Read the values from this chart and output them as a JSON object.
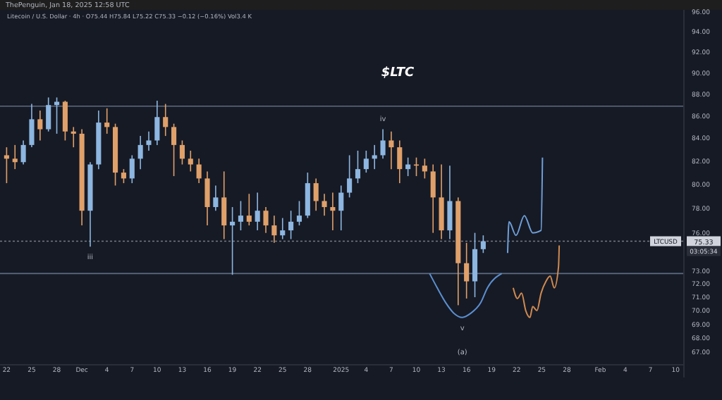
{
  "chart_data": {
    "type": "candlestick",
    "title": "$LTC",
    "subtitle": "Litecoin / U.S. Dollar · 4h · O75.44 H75.84 L75.22 C75.33 −0.12 (−0.16%) Vol3.4 K",
    "x": [
      "2024-11-22",
      "2024-11-23",
      "2024-11-24",
      "2024-11-25",
      "2024-11-26",
      "2024-11-27",
      "2024-11-28",
      "2024-11-29",
      "2024-11-30",
      "2024-12-01",
      "2024-12-02",
      "2024-12-03",
      "2024-12-04",
      "2024-12-05",
      "2024-12-06",
      "2024-12-07",
      "2024-12-08",
      "2024-12-09",
      "2024-12-10",
      "2024-12-11",
      "2024-12-12",
      "2024-12-13",
      "2024-12-14",
      "2024-12-15",
      "2024-12-16",
      "2024-12-17",
      "2024-12-18",
      "2024-12-19",
      "2024-12-20",
      "2024-12-21",
      "2024-12-22",
      "2024-12-23",
      "2024-12-24",
      "2024-12-25",
      "2024-12-26",
      "2024-12-27",
      "2024-12-28",
      "2024-12-29",
      "2024-12-30",
      "2024-12-31",
      "2025-01-01",
      "2025-01-02",
      "2025-01-03",
      "2025-01-04",
      "2025-01-05",
      "2025-01-06",
      "2025-01-07",
      "2025-01-08",
      "2025-01-09",
      "2025-01-10",
      "2025-01-11",
      "2025-01-12",
      "2025-01-13",
      "2025-01-14",
      "2025-01-15",
      "2025-01-16",
      "2025-01-17",
      "2025-01-18"
    ],
    "ohlc": [
      [
        82.5,
        83.2,
        80.1,
        82.2
      ],
      [
        82.2,
        83.4,
        81.3,
        81.9
      ],
      [
        81.9,
        83.8,
        81.7,
        83.4
      ],
      [
        83.4,
        87.1,
        83.2,
        85.7
      ],
      [
        85.7,
        86.5,
        83.8,
        84.8
      ],
      [
        84.8,
        87.7,
        84.6,
        87.0
      ],
      [
        87.0,
        87.7,
        84.4,
        87.3
      ],
      [
        87.3,
        87.4,
        83.8,
        84.6
      ],
      [
        84.6,
        85.0,
        83.2,
        84.4
      ],
      [
        84.4,
        84.8,
        76.6,
        77.8
      ],
      [
        77.8,
        81.9,
        74.9,
        81.7
      ],
      [
        81.7,
        86.5,
        81.3,
        85.4
      ],
      [
        85.4,
        86.7,
        84.4,
        85.0
      ],
      [
        85.0,
        85.3,
        79.9,
        81.0
      ],
      [
        81.0,
        81.3,
        80.1,
        80.5
      ],
      [
        80.5,
        82.5,
        80.1,
        82.2
      ],
      [
        82.2,
        84.2,
        81.3,
        83.4
      ],
      [
        83.4,
        84.6,
        82.9,
        83.8
      ],
      [
        83.8,
        87.4,
        83.4,
        85.9
      ],
      [
        85.9,
        87.1,
        84.2,
        85.0
      ],
      [
        85.0,
        85.3,
        80.7,
        83.4
      ],
      [
        83.4,
        83.8,
        81.7,
        82.2
      ],
      [
        82.2,
        82.9,
        81.1,
        81.7
      ],
      [
        81.7,
        82.2,
        80.1,
        80.5
      ],
      [
        80.5,
        81.1,
        76.6,
        78.1
      ],
      [
        78.1,
        79.9,
        77.8,
        78.9
      ],
      [
        78.9,
        81.1,
        75.5,
        76.6
      ],
      [
        76.6,
        78.1,
        72.7,
        76.9
      ],
      [
        76.9,
        78.6,
        76.2,
        77.4
      ],
      [
        77.4,
        79.2,
        76.6,
        76.9
      ],
      [
        76.9,
        79.3,
        76.2,
        77.8
      ],
      [
        77.8,
        78.1,
        76.0,
        76.6
      ],
      [
        76.6,
        77.4,
        75.2,
        75.8
      ],
      [
        75.8,
        77.2,
        75.5,
        76.2
      ],
      [
        76.2,
        77.8,
        75.5,
        76.9
      ],
      [
        76.9,
        78.6,
        76.6,
        77.4
      ],
      [
        77.4,
        81.0,
        77.2,
        80.1
      ],
      [
        80.1,
        80.5,
        77.8,
        78.6
      ],
      [
        78.6,
        79.2,
        77.4,
        78.1
      ],
      [
        78.1,
        79.3,
        76.2,
        77.8
      ],
      [
        77.8,
        79.9,
        76.2,
        79.3
      ],
      [
        79.3,
        82.5,
        78.9,
        80.5
      ],
      [
        80.5,
        82.9,
        80.1,
        81.3
      ],
      [
        81.3,
        82.9,
        81.0,
        82.2
      ],
      [
        82.2,
        83.4,
        81.3,
        82.5
      ],
      [
        82.5,
        84.8,
        82.2,
        83.8
      ],
      [
        83.8,
        84.6,
        81.3,
        83.2
      ],
      [
        83.2,
        83.8,
        80.1,
        81.3
      ],
      [
        81.3,
        82.3,
        80.7,
        81.7
      ],
      [
        81.7,
        82.3,
        80.7,
        81.6
      ],
      [
        81.6,
        82.2,
        80.5,
        81.1
      ],
      [
        81.1,
        81.7,
        76.0,
        78.9
      ],
      [
        78.9,
        81.7,
        75.5,
        76.2
      ],
      [
        76.2,
        81.6,
        75.5,
        78.6
      ],
      [
        78.6,
        78.9,
        70.4,
        73.6
      ],
      [
        73.6,
        75.2,
        70.9,
        72.2
      ],
      [
        72.2,
        76.0,
        71.0,
        74.7
      ],
      [
        74.7,
        75.8,
        74.4,
        75.33
      ]
    ],
    "colors": [
      "#e0a06a",
      "#e0a06a",
      "#8db6e0",
      "#8db6e0",
      "#e0a06a",
      "#8db6e0",
      "#8db6e0",
      "#e0a06a",
      "#e0a06a",
      "#e0a06a",
      "#8db6e0",
      "#8db6e0",
      "#e0a06a",
      "#e0a06a",
      "#e0a06a",
      "#8db6e0",
      "#8db6e0",
      "#8db6e0",
      "#8db6e0",
      "#e0a06a",
      "#e0a06a",
      "#e0a06a",
      "#e0a06a",
      "#e0a06a",
      "#e0a06a",
      "#8db6e0",
      "#e0a06a",
      "#8db6e0",
      "#8db6e0",
      "#e0a06a",
      "#8db6e0",
      "#e0a06a",
      "#e0a06a",
      "#8db6e0",
      "#8db6e0",
      "#8db6e0",
      "#8db6e0",
      "#e0a06a",
      "#e0a06a",
      "#e0a06a",
      "#8db6e0",
      "#8db6e0",
      "#8db6e0",
      "#8db6e0",
      "#8db6e0",
      "#8db6e0",
      "#e0a06a",
      "#e0a06a",
      "#8db6e0",
      "#e0a06a",
      "#e0a06a",
      "#e0a06a",
      "#e0a06a",
      "#8db6e0",
      "#e0a06a",
      "#e0a06a",
      "#8db6e0",
      "#8db6e0"
    ],
    "series": [
      {
        "type": "line",
        "color": "#6f9fd8",
        "x": [
          "2025-01-20T22:00",
          "2025-01-21T02:00",
          "2025-01-21T22:00",
          "2025-01-22T22:00",
          "2025-01-23T22:00",
          "2025-01-24T22:00",
          "2025-01-25T02:00"
        ],
        "values": [
          74.4,
          76.9,
          75.8,
          77.4,
          76.0,
          76.2,
          82.3
        ]
      },
      {
        "type": "line",
        "color": "#d08a50",
        "x": [
          "2025-01-21T14:00",
          "2025-01-22T02:00",
          "2025-01-22T14:00",
          "2025-01-23T02:00",
          "2025-01-23T14:00",
          "2025-01-23T22:00",
          "2025-01-24T10:00",
          "2025-01-24T22:00",
          "2025-01-25T12:00",
          "2025-01-26T00:00",
          "2025-01-26T12:00",
          "2025-01-27T00:00",
          "2025-01-27T02:00"
        ],
        "values": [
          71.7,
          70.9,
          71.3,
          70.0,
          69.5,
          70.3,
          70.0,
          71.3,
          72.2,
          72.6,
          71.7,
          73.3,
          75.0
        ]
      },
      {
        "type": "line",
        "color": "#5b8fd0",
        "x": [
          "2025-01-11T14:00",
          "2025-01-12T12:00",
          "2025-01-13T12:00",
          "2025-01-14T12:00",
          "2025-01-15T12:00",
          "2025-01-16T12:00",
          "2025-01-17T17:00",
          "2025-01-18T12:00",
          "2025-01-20T05:00"
        ],
        "values": [
          72.8,
          71.7,
          70.6,
          69.8,
          69.5,
          69.8,
          70.6,
          71.7,
          72.8
        ]
      }
    ],
    "xlim": [
      "2024-11-21T05:00",
      "2025-02-11T00:00"
    ],
    "xticks": [
      {
        "value": "2024-11-22",
        "label": "22"
      },
      {
        "value": "2024-11-25",
        "label": "25"
      },
      {
        "value": "2024-11-28",
        "label": "28"
      },
      {
        "value": "2024-12-01",
        "label": "Dec"
      },
      {
        "value": "2024-12-04",
        "label": "4"
      },
      {
        "value": "2024-12-07",
        "label": "7"
      },
      {
        "value": "2024-12-10",
        "label": "10"
      },
      {
        "value": "2024-12-13",
        "label": "13"
      },
      {
        "value": "2024-12-16",
        "label": "16"
      },
      {
        "value": "2024-12-19",
        "label": "19"
      },
      {
        "value": "2024-12-22",
        "label": "22"
      },
      {
        "value": "2024-12-25",
        "label": "25"
      },
      {
        "value": "2024-12-28",
        "label": "28"
      },
      {
        "value": "2025-01-01",
        "label": "2025"
      },
      {
        "value": "2025-01-04",
        "label": "4"
      },
      {
        "value": "2025-01-07",
        "label": "7"
      },
      {
        "value": "2025-01-10",
        "label": "10"
      },
      {
        "value": "2025-01-13",
        "label": "13"
      },
      {
        "value": "2025-01-16",
        "label": "16"
      },
      {
        "value": "2025-01-19",
        "label": "19"
      },
      {
        "value": "2025-01-22",
        "label": "22"
      },
      {
        "value": "2025-01-25",
        "label": "25"
      },
      {
        "value": "2025-01-28",
        "label": "28"
      },
      {
        "value": "2025-02-01",
        "label": "Feb"
      },
      {
        "value": "2025-02-04",
        "label": "4"
      },
      {
        "value": "2025-02-07",
        "label": "7"
      },
      {
        "value": "2025-02-10",
        "label": "10"
      }
    ],
    "log": true,
    "ylim": [
      66.2,
      96.5
    ],
    "yticks": [
      {
        "value": 96,
        "label": "96.00"
      },
      {
        "value": 94,
        "label": "94.00"
      },
      {
        "value": 92,
        "label": "92.00"
      },
      {
        "value": 90,
        "label": "90.00"
      },
      {
        "value": 88,
        "label": "88.00"
      },
      {
        "value": 86,
        "label": "86.00"
      },
      {
        "value": 84,
        "label": "84.00"
      },
      {
        "value": 82,
        "label": "82.00"
      },
      {
        "value": 80,
        "label": "80.00"
      },
      {
        "value": 78,
        "label": "78.00"
      },
      {
        "value": 76,
        "label": "76.00"
      },
      {
        "value": 73,
        "label": "73.00"
      },
      {
        "value": 72,
        "label": "72.00"
      },
      {
        "value": 71,
        "label": "71.00"
      },
      {
        "value": 70,
        "label": "70.00"
      },
      {
        "value": 69,
        "label": "69.00"
      },
      {
        "value": 68,
        "label": "68.00"
      },
      {
        "value": 67,
        "label": "67.00"
      }
    ],
    "ref_lines": [
      {
        "axis": "y",
        "value": 86.9,
        "color": "#5d6b82"
      },
      {
        "axis": "y",
        "value": 72.8,
        "color": "#5d6b82"
      },
      {
        "axis": "y",
        "value": 75.33,
        "label": "75.33",
        "line_style": "dotted",
        "color": "#787b86"
      }
    ],
    "annotations": [
      "ThePenguin, Jan 18, 2025 12:58 UTC",
      {
        "text": "LTCUSD",
        "y": 75.33
      },
      "03:05:34",
      {
        "text": "iii",
        "x": "2024-12-02",
        "y": 74.9
      },
      {
        "text": "iv",
        "x": "2025-01-06",
        "y": 84.8
      },
      {
        "text": "v",
        "x": "2025-01-15T12:00",
        "y": 69.5
      },
      "(a)"
    ]
  }
}
